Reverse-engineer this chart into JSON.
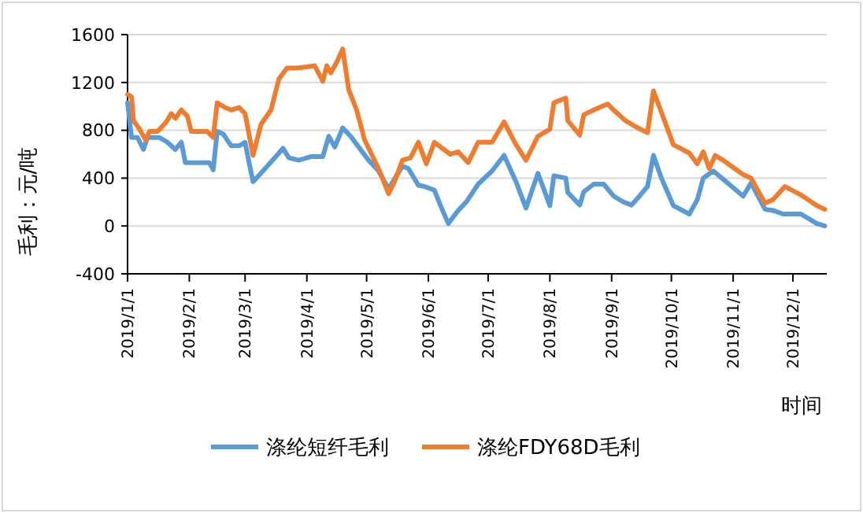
{
  "chart_data": {
    "type": "line",
    "ylabel": "毛利：元/吨",
    "xlabel": "时间",
    "xlim": [
      "2019-01-01",
      "2019-12-18"
    ],
    "xticks": [
      {
        "value": "2019-01-01",
        "label": "2019/1/1"
      },
      {
        "value": "2019-02-01",
        "label": "2019/2/1"
      },
      {
        "value": "2019-03-01",
        "label": "2019/3/1"
      },
      {
        "value": "2019-04-01",
        "label": "2019/4/1"
      },
      {
        "value": "2019-05-01",
        "label": "2019/5/1"
      },
      {
        "value": "2019-06-01",
        "label": "2019/6/1"
      },
      {
        "value": "2019-07-01",
        "label": "2019/7/1"
      },
      {
        "value": "2019-08-01",
        "label": "2019/8/1"
      },
      {
        "value": "2019-09-01",
        "label": "2019/9/1"
      },
      {
        "value": "2019-10-01",
        "label": "2019/10/1"
      },
      {
        "value": "2019-11-01",
        "label": "2019/11/1"
      },
      {
        "value": "2019-12-01",
        "label": "2019/12/1"
      }
    ],
    "ylim": [
      -400,
      1600
    ],
    "yticks": [
      -400,
      0,
      400,
      800,
      1200,
      1600
    ],
    "grid": "y",
    "legend": "bottom",
    "marker": "none",
    "line_style": "solid",
    "series": [
      {
        "name": "涤纶短纤毛利",
        "color": "#5b9bd5",
        "x": [
          "2019-01-01",
          "2019-01-03",
          "2019-01-06",
          "2019-01-09",
          "2019-01-11",
          "2019-01-17",
          "2019-01-21",
          "2019-01-25",
          "2019-01-28",
          "2019-01-30",
          "2019-02-01",
          "2019-02-08",
          "2019-02-11",
          "2019-02-13",
          "2019-02-15",
          "2019-02-18",
          "2019-02-22",
          "2019-02-26",
          "2019-03-01",
          "2019-03-03",
          "2019-03-05",
          "2019-03-10",
          "2019-03-18",
          "2019-03-20",
          "2019-03-23",
          "2019-03-28",
          "2019-04-03",
          "2019-04-09",
          "2019-04-12",
          "2019-04-15",
          "2019-04-19",
          "2019-04-23",
          "2019-04-27",
          "2019-05-02",
          "2019-05-07",
          "2019-05-12",
          "2019-05-16",
          "2019-05-19",
          "2019-05-22",
          "2019-05-27",
          "2019-05-30",
          "2019-06-04",
          "2019-06-07",
          "2019-06-11",
          "2019-06-16",
          "2019-06-20",
          "2019-06-26",
          "2019-07-03",
          "2019-07-09",
          "2019-07-15",
          "2019-07-20",
          "2019-07-26",
          "2019-08-01",
          "2019-08-03",
          "2019-08-09",
          "2019-08-10",
          "2019-08-16",
          "2019-08-18",
          "2019-08-23",
          "2019-08-28",
          "2019-09-02",
          "2019-09-07",
          "2019-09-11",
          "2019-09-15",
          "2019-09-19",
          "2019-09-22",
          "2019-09-26",
          "2019-10-02",
          "2019-10-10",
          "2019-10-14",
          "2019-10-17",
          "2019-10-22",
          "2019-10-27",
          "2019-11-01",
          "2019-11-06",
          "2019-11-10",
          "2019-11-17",
          "2019-11-21",
          "2019-11-26",
          "2019-12-05",
          "2019-12-13",
          "2019-12-17"
        ],
        "values": [
          1030,
          740,
          740,
          640,
          740,
          740,
          700,
          640,
          700,
          530,
          530,
          530,
          530,
          470,
          790,
          770,
          670,
          670,
          700,
          530,
          370,
          460,
          610,
          650,
          570,
          550,
          580,
          580,
          750,
          660,
          820,
          750,
          660,
          550,
          460,
          310,
          420,
          500,
          480,
          340,
          330,
          300,
          175,
          20,
          130,
          200,
          350,
          460,
          590,
          370,
          150,
          440,
          170,
          420,
          400,
          280,
          175,
          285,
          350,
          350,
          250,
          200,
          175,
          250,
          330,
          590,
          400,
          170,
          100,
          220,
          400,
          460,
          390,
          320,
          250,
          360,
          140,
          130,
          100,
          100,
          20,
          0
        ]
      },
      {
        "name": "涤纶FDY68D毛利",
        "color": "#ed7d31",
        "x": [
          "2019-01-01",
          "2019-01-03",
          "2019-01-04",
          "2019-01-07",
          "2019-01-10",
          "2019-01-12",
          "2019-01-16",
          "2019-01-20",
          "2019-01-23",
          "2019-01-25",
          "2019-01-28",
          "2019-01-31",
          "2019-02-02",
          "2019-02-10",
          "2019-02-13",
          "2019-02-15",
          "2019-02-19",
          "2019-02-22",
          "2019-02-26",
          "2019-03-01",
          "2019-03-05",
          "2019-03-09",
          "2019-03-14",
          "2019-03-18",
          "2019-03-22",
          "2019-03-27",
          "2019-04-01",
          "2019-04-05",
          "2019-04-09",
          "2019-04-11",
          "2019-04-13",
          "2019-04-16",
          "2019-04-19",
          "2019-04-22",
          "2019-04-26",
          "2019-04-30",
          "2019-05-07",
          "2019-05-12",
          "2019-05-15",
          "2019-05-19",
          "2019-05-23",
          "2019-05-27",
          "2019-05-31",
          "2019-06-04",
          "2019-06-12",
          "2019-06-16",
          "2019-06-21",
          "2019-06-26",
          "2019-07-03",
          "2019-07-09",
          "2019-07-15",
          "2019-07-20",
          "2019-07-26",
          "2019-08-01",
          "2019-08-03",
          "2019-08-09",
          "2019-08-10",
          "2019-08-16",
          "2019-08-18",
          "2019-08-23",
          "2019-08-30",
          "2019-09-02",
          "2019-09-08",
          "2019-09-13",
          "2019-09-19",
          "2019-09-22",
          "2019-10-02",
          "2019-10-10",
          "2019-10-14",
          "2019-10-17",
          "2019-10-20",
          "2019-10-23",
          "2019-10-27",
          "2019-11-01",
          "2019-11-06",
          "2019-11-10",
          "2019-11-17",
          "2019-11-21",
          "2019-11-27",
          "2019-12-05",
          "2019-12-13",
          "2019-12-17"
        ],
        "values": [
          1100,
          1080,
          880,
          810,
          720,
          790,
          790,
          860,
          940,
          900,
          970,
          920,
          790,
          790,
          740,
          1030,
          990,
          970,
          990,
          940,
          590,
          850,
          970,
          1230,
          1320,
          1320,
          1330,
          1340,
          1210,
          1340,
          1280,
          1370,
          1480,
          1140,
          970,
          720,
          480,
          270,
          370,
          550,
          570,
          700,
          520,
          700,
          600,
          620,
          530,
          700,
          700,
          870,
          680,
          550,
          750,
          810,
          1030,
          1070,
          880,
          760,
          930,
          970,
          1020,
          970,
          880,
          830,
          780,
          1130,
          680,
          610,
          520,
          620,
          480,
          590,
          550,
          490,
          430,
          400,
          190,
          220,
          330,
          260,
          170,
          140
        ]
      }
    ]
  }
}
